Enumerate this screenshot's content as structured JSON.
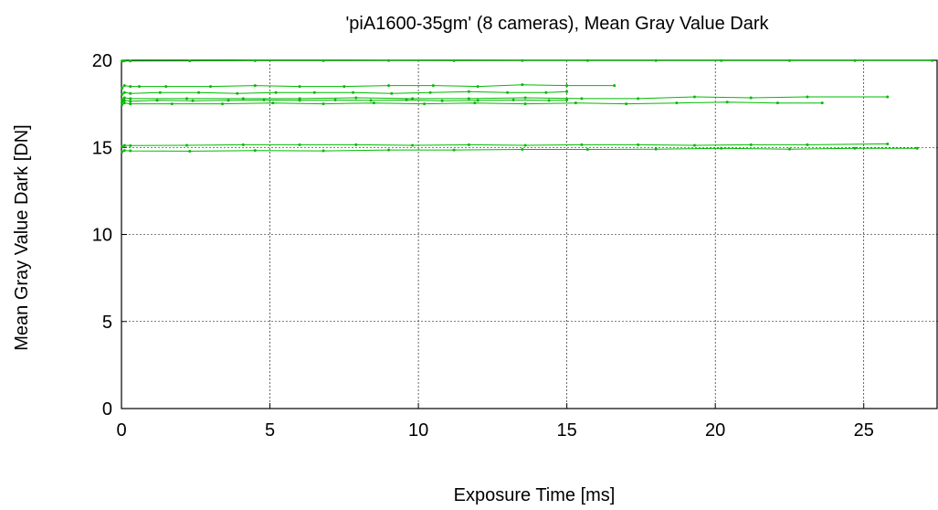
{
  "chart_data": {
    "type": "line",
    "title": "'piA1600-35gm' (8 cameras), Mean Gray Value Dark",
    "xlabel": "Exposure Time [ms]",
    "ylabel": "Mean Gray Value Dark [DN]",
    "xlim": [
      0,
      27.5
    ],
    "ylim": [
      0,
      20
    ],
    "xticks": [
      0,
      5,
      10,
      15,
      20,
      25
    ],
    "yticks": [
      0,
      5,
      10,
      15,
      20
    ],
    "grid": true,
    "legend": "none",
    "series_color": "#00bb00",
    "series": [
      {
        "x": [
          0.02,
          0.1,
          0.3,
          2.3,
          4.5,
          6.8,
          9,
          11.2,
          13.5,
          15.7,
          18,
          20.2,
          22.5,
          24.7,
          27.3
        ],
        "y": [
          19.95,
          19.97,
          19.96,
          19.97,
          19.98,
          19.98,
          19.99,
          19.98,
          19.99,
          19.99,
          19.99,
          19.99,
          19.99,
          19.99,
          19.99
        ]
      },
      {
        "x": [
          0.02,
          0.1,
          0.3,
          0.6,
          1.5,
          3,
          4.5,
          6,
          7.5,
          9,
          10.5,
          12,
          13.5,
          15,
          16.6
        ],
        "y": [
          18.4,
          18.55,
          18.5,
          18.5,
          18.5,
          18.5,
          18.55,
          18.5,
          18.5,
          18.55,
          18.55,
          18.5,
          18.6,
          18.55,
          18.55
        ]
      },
      {
        "x": [
          0.02,
          0.1,
          0.3,
          1.3,
          2.6,
          3.9,
          5.2,
          6.5,
          7.8,
          9.1,
          10.4,
          11.7,
          13,
          14.3,
          15
        ],
        "y": [
          18.05,
          18.15,
          18.1,
          18.15,
          18.15,
          18.1,
          18.15,
          18.15,
          18.15,
          18.1,
          18.15,
          18.2,
          18.15,
          18.15,
          18.2
        ]
      },
      {
        "x": [
          0.02,
          0.1,
          0.3,
          2.2,
          4.1,
          6,
          7.9,
          9.8,
          11.7,
          13.6,
          15.5,
          17.4,
          19.3,
          21.2,
          23.1,
          25.8
        ],
        "y": [
          17.75,
          17.85,
          17.8,
          17.8,
          17.8,
          17.8,
          17.85,
          17.8,
          17.8,
          17.85,
          17.8,
          17.8,
          17.9,
          17.85,
          17.9,
          17.9
        ]
      },
      {
        "x": [
          0.02,
          0.1,
          0.3,
          1.2,
          2.4,
          3.6,
          4.8,
          6,
          7.2,
          8.4,
          9.6,
          10.8,
          12,
          13.2,
          14.4,
          15
        ],
        "y": [
          17.62,
          17.7,
          17.65,
          17.7,
          17.68,
          17.7,
          17.72,
          17.7,
          17.72,
          17.7,
          17.72,
          17.68,
          17.7,
          17.72,
          17.7,
          17.72
        ]
      },
      {
        "x": [
          0.02,
          0.1,
          0.3,
          1.7,
          3.4,
          5.1,
          6.8,
          8.5,
          10.2,
          11.9,
          13.6,
          15.3,
          17,
          18.7,
          20.4,
          22.1,
          23.6
        ],
        "y": [
          17.45,
          17.55,
          17.5,
          17.5,
          17.5,
          17.55,
          17.5,
          17.55,
          17.5,
          17.55,
          17.5,
          17.55,
          17.5,
          17.55,
          17.6,
          17.55,
          17.55
        ]
      },
      {
        "x": [
          0.02,
          0.1,
          0.3,
          2.2,
          4.1,
          6,
          7.9,
          9.8,
          11.7,
          13.6,
          15.5,
          17.4,
          19.3,
          21.2,
          23.1,
          25.8
        ],
        "y": [
          15.05,
          15.12,
          15.1,
          15.12,
          15.15,
          15.15,
          15.15,
          15.12,
          15.15,
          15.12,
          15.15,
          15.15,
          15.12,
          15.15,
          15.15,
          15.2
        ]
      },
      {
        "x": [
          0.02,
          0.1,
          0.3,
          2.3,
          4.5,
          6.8,
          9,
          11.2,
          13.5,
          15.7,
          18,
          20.2,
          22.5,
          24.7,
          26.8
        ],
        "y": [
          14.75,
          14.82,
          14.8,
          14.78,
          14.82,
          14.8,
          14.85,
          14.85,
          14.88,
          14.88,
          14.9,
          14.95,
          14.9,
          14.95,
          14.95
        ]
      }
    ]
  }
}
